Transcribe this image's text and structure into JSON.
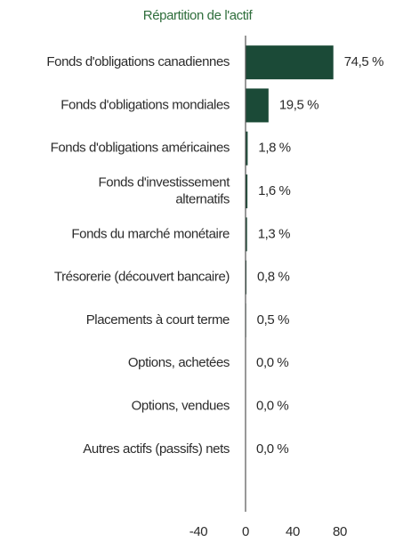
{
  "chart_data": {
    "type": "bar",
    "orientation": "horizontal",
    "title": "Répartition de l'actif",
    "categories": [
      "Fonds d'obligations canadiennes",
      "Fonds d'obligations mondiales",
      "Fonds d'obligations américaines",
      "Fonds d'investissement\nalternatifs",
      "Fonds du marché monétaire",
      "Trésorerie (découvert bancaire)",
      "Placements à court terme",
      "Options, achetées",
      "Options, vendues",
      "Autres actifs (passifs) nets"
    ],
    "values": [
      74.5,
      19.5,
      1.8,
      1.6,
      1.3,
      0.8,
      0.5,
      0.0,
      0.0,
      0.0
    ],
    "value_labels": [
      "74,5 %",
      "19,5 %",
      "1,8 %",
      "1,6 %",
      "1,3 %",
      "0,8 %",
      "0,5 %",
      "0,0 %",
      "0,0 %",
      "0,0 %"
    ],
    "color": "#1b4a37",
    "xlim": [
      -40,
      80
    ],
    "xticks": [
      -40,
      0,
      40,
      80
    ],
    "grid": false
  }
}
